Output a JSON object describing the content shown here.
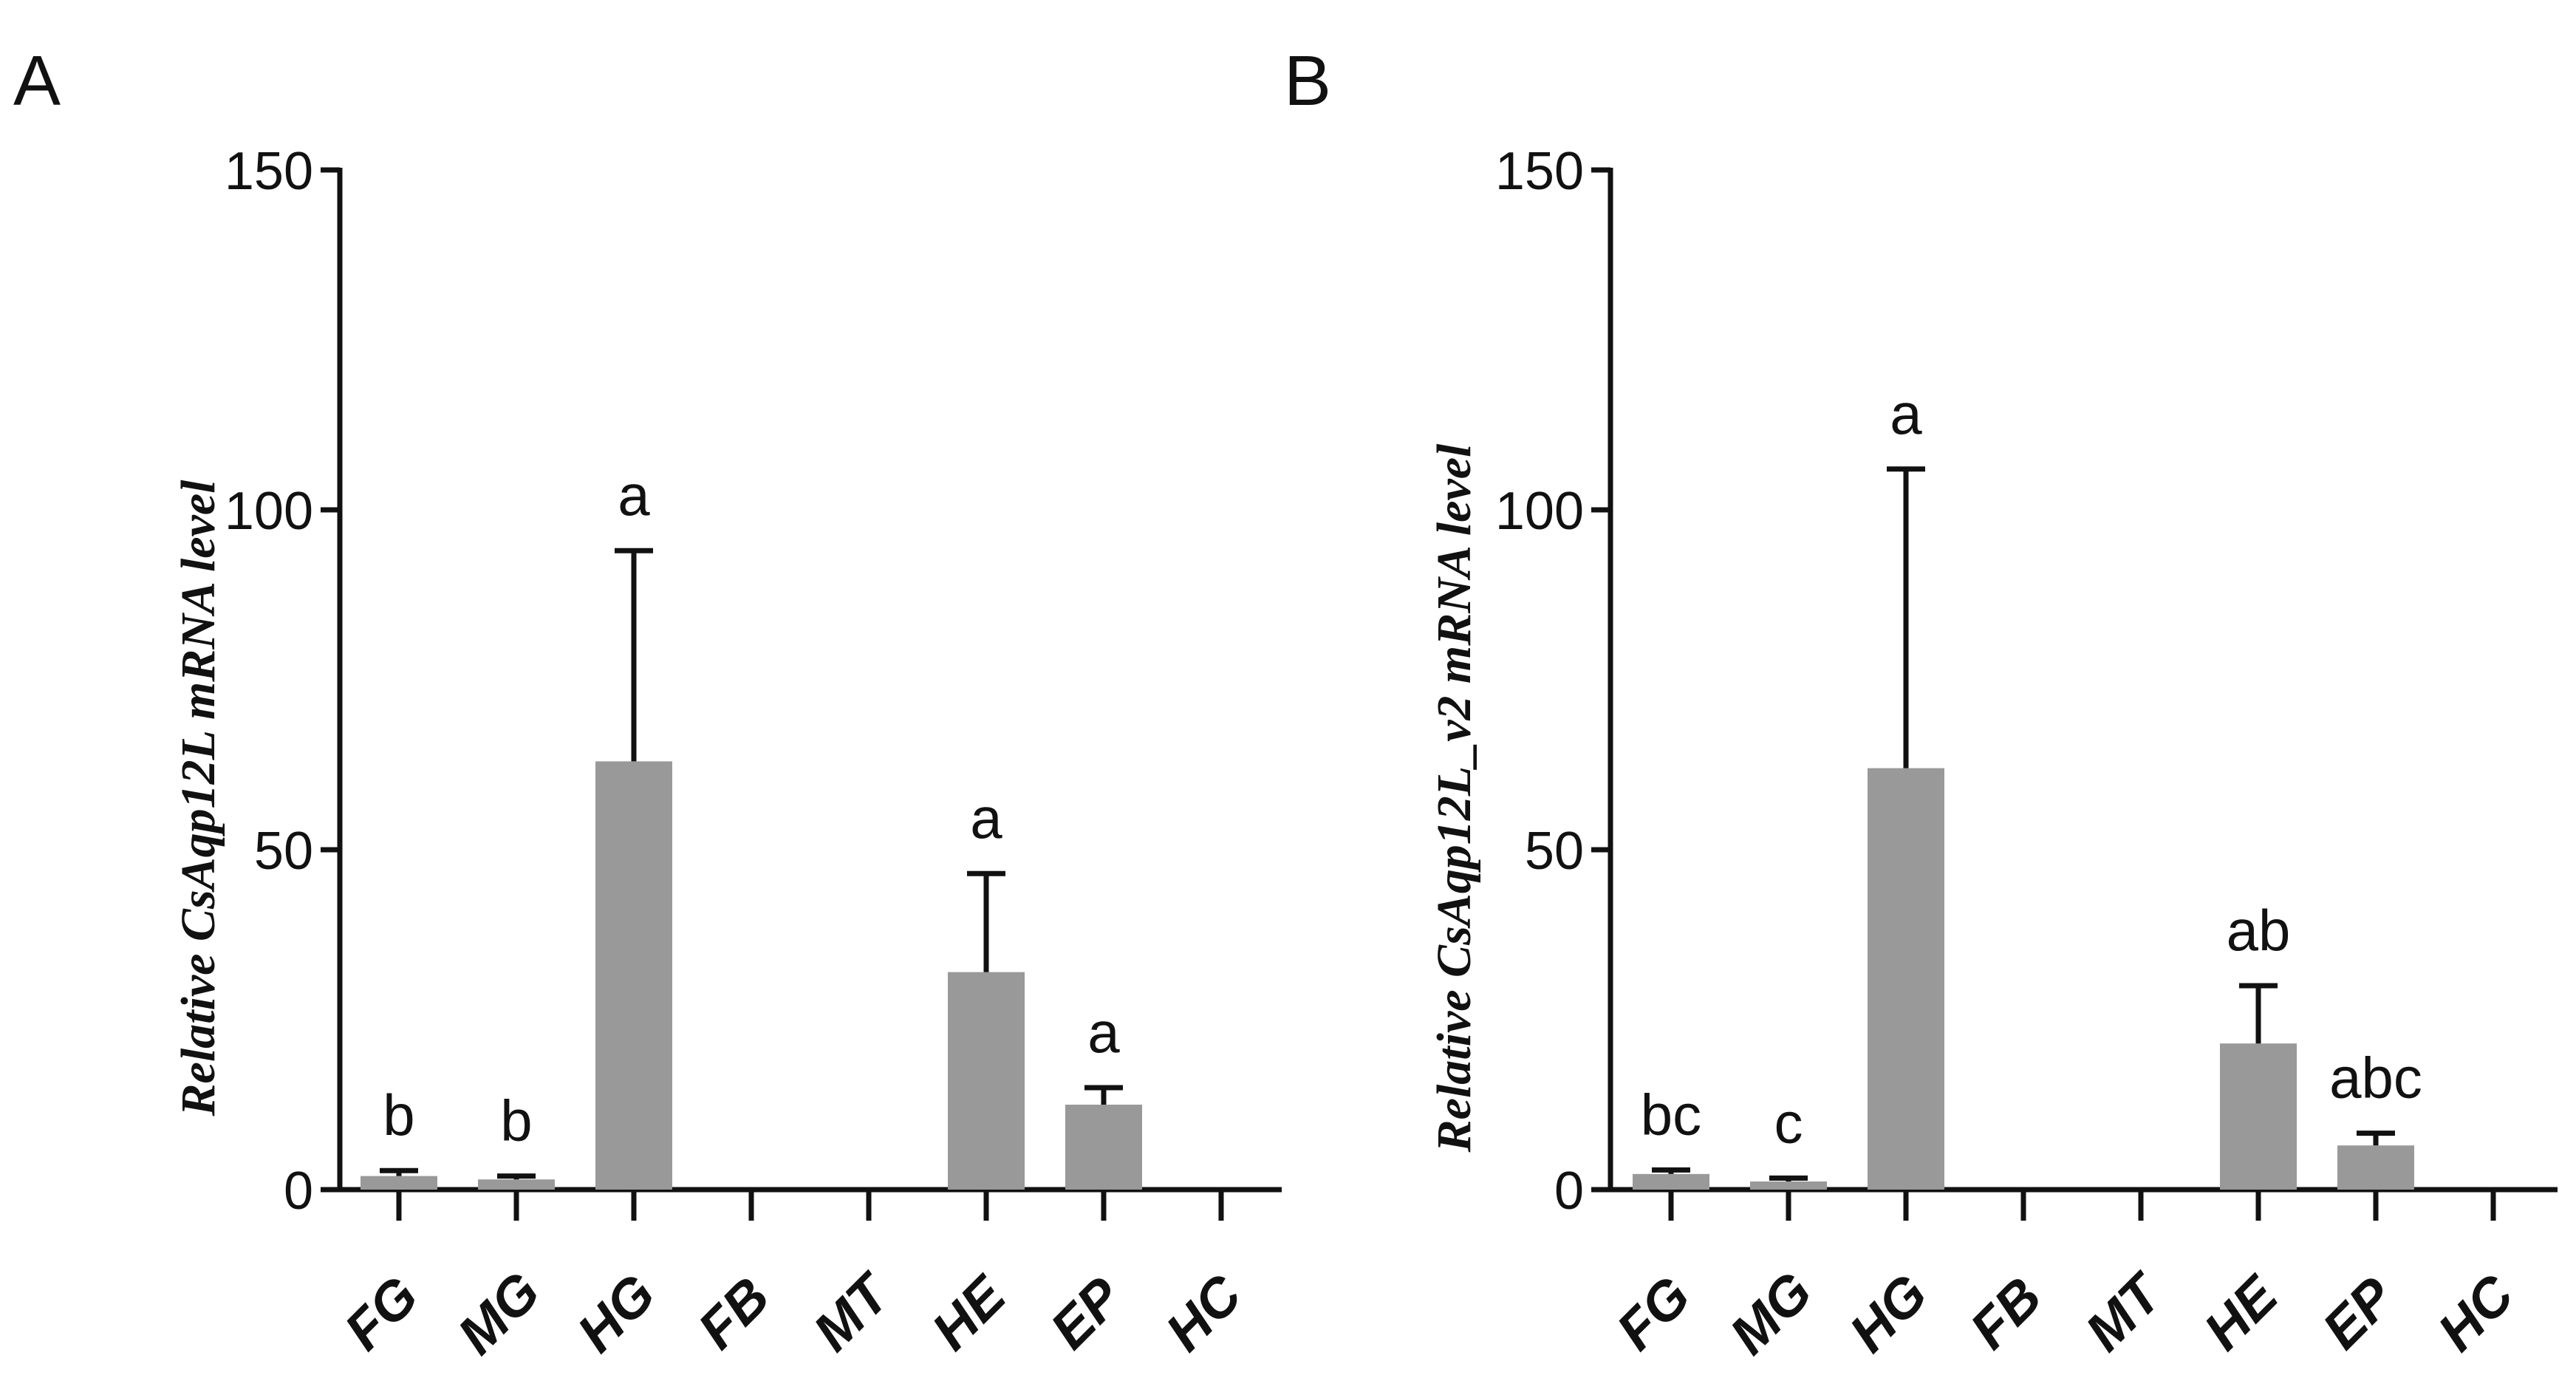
{
  "chart_data": [
    {
      "type": "bar",
      "panel": "A",
      "ylabel_prefix": "Relative ",
      "ylabel_gene": "CsAqp12L",
      "ylabel_suffix": " mRNA level",
      "ylim": [
        0,
        150
      ],
      "yticks": [
        0,
        50,
        100,
        150
      ],
      "categories": [
        "FG",
        "MG",
        "HG",
        "FB",
        "MT",
        "HE",
        "EP",
        "HC"
      ],
      "values": [
        2,
        1.5,
        63,
        0,
        0,
        32,
        12.5,
        0
      ],
      "errors": [
        0.8,
        0.5,
        31,
        0,
        0,
        14.5,
        2.5,
        0
      ],
      "labels": [
        "b",
        "b",
        "a",
        "",
        "",
        "a",
        "a",
        ""
      ],
      "bar_color": "#999999"
    },
    {
      "type": "bar",
      "panel": "B",
      "ylabel_prefix": "Relative ",
      "ylabel_gene": "CsAqp12L_v2",
      "ylabel_suffix": " mRNA level",
      "ylim": [
        0,
        150
      ],
      "yticks": [
        0,
        50,
        100,
        150
      ],
      "categories": [
        "FG",
        "MG",
        "HG",
        "FB",
        "MT",
        "HE",
        "EP",
        "HC"
      ],
      "values": [
        2.3,
        1.2,
        62,
        0,
        0,
        21.5,
        6.5,
        0
      ],
      "errors": [
        0.6,
        0.5,
        44,
        0,
        0,
        8.5,
        1.8,
        0
      ],
      "labels": [
        "bc",
        "c",
        "a",
        "",
        "",
        "ab",
        "abc",
        ""
      ],
      "bar_color": "#999999"
    }
  ]
}
